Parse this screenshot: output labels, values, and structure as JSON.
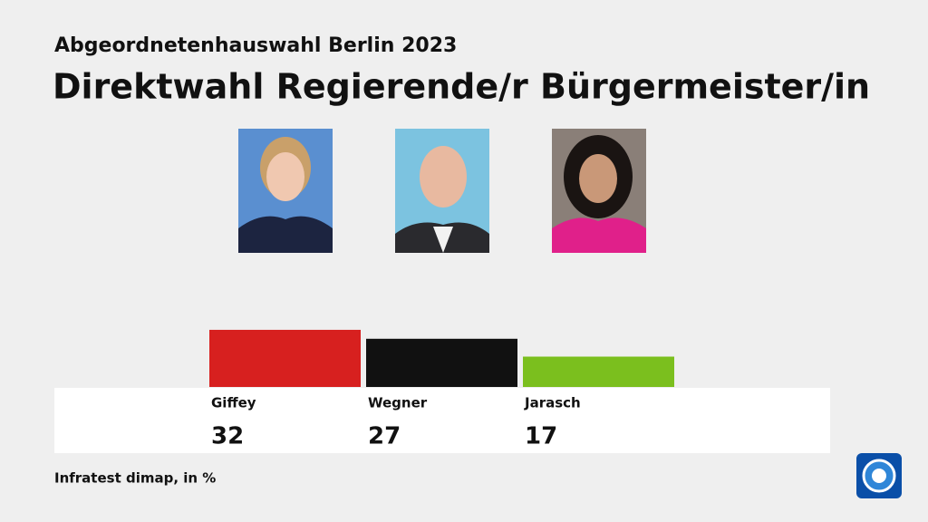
{
  "chart_data": {
    "type": "bar",
    "subtitle": "Abgeordnetenhauswahl Berlin 2023",
    "title": "Direktwahl Regierende/r Bürgermeister/in",
    "categories": [
      "Giffey",
      "Wegner",
      "Jarasch"
    ],
    "values": [
      32,
      27,
      17
    ],
    "colors": [
      "#d7201f",
      "#111111",
      "#7bbf1e"
    ],
    "source": "Infratest dimap, in %"
  }
}
